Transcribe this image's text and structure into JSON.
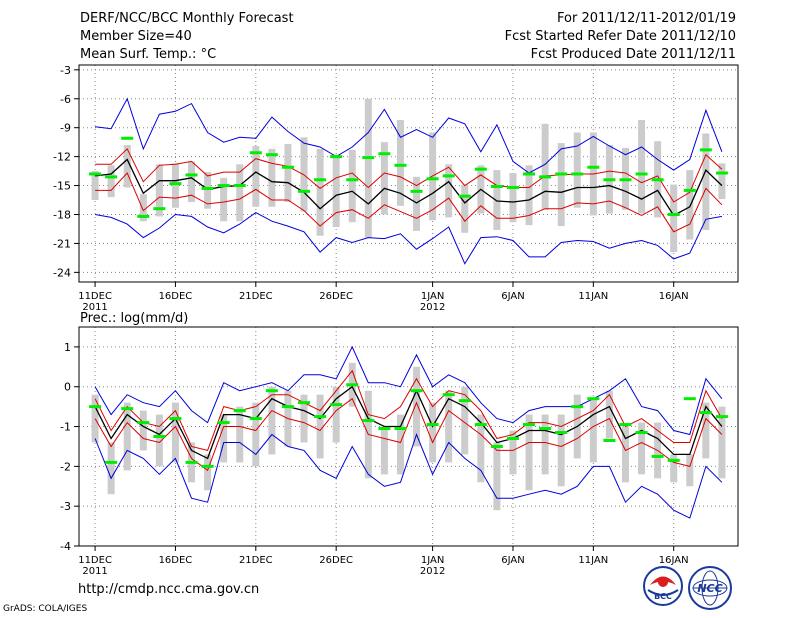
{
  "header": {
    "title": "DERF/NCC/BCC Monthly Forecast",
    "member_size": "Member Size=40",
    "period": "For 2011/12/11-2012/01/19",
    "fcst_started": "Fcst Started Refer Date 2011/12/10",
    "fcst_produced": "Fcst Produced Date 2011/12/11"
  },
  "footer": {
    "url": "http://cmdp.ncc.cma.gov.cn",
    "grads": "GrADS: COLA/IGES",
    "logo_bcc": "BCC",
    "logo_ncc": "NCC"
  },
  "colors": {
    "box": "#cccccc",
    "median": "#00ee00",
    "mean": "#000000",
    "std": "#dd0000",
    "extreme": "#0000dd",
    "grid": "#888888"
  },
  "chart_data": [
    {
      "type": "line",
      "title": "Mean Surf. Temp.: °C",
      "x": [
        1,
        2,
        3,
        4,
        5,
        6,
        7,
        8,
        9,
        10,
        11,
        12,
        13,
        14,
        15,
        16,
        17,
        18,
        19,
        20,
        21,
        22,
        23,
        24,
        25,
        26,
        27,
        28,
        29,
        30,
        31,
        32,
        33,
        34,
        35,
        36,
        37,
        38,
        39,
        40
      ],
      "xlim": [
        0,
        41
      ],
      "ylim": [
        -25,
        -2.5
      ],
      "yticks": [
        -3,
        -6,
        -9,
        -12,
        -15,
        -18,
        -21,
        -24
      ],
      "xticks": [
        {
          "x": 1,
          "label": "11DEC",
          "sub": "2011"
        },
        {
          "x": 6,
          "label": "16DEC",
          "sub": ""
        },
        {
          "x": 11,
          "label": "21DEC",
          "sub": ""
        },
        {
          "x": 16,
          "label": "26DEC",
          "sub": ""
        },
        {
          "x": 22,
          "label": "1JAN",
          "sub": "2012"
        },
        {
          "x": 27,
          "label": "6JAN",
          "sub": ""
        },
        {
          "x": 32,
          "label": "11JAN",
          "sub": ""
        },
        {
          "x": 37,
          "label": "16JAN",
          "sub": ""
        }
      ],
      "series": [
        {
          "name": "max",
          "values": [
            -8.9,
            -9.1,
            -6,
            -11.2,
            -7.6,
            -7.3,
            -6.5,
            -9.5,
            -10.5,
            -10,
            -10.1,
            -7.9,
            -9.4,
            -10.6,
            -11,
            -12,
            -11,
            -9.5,
            -7.1,
            -10,
            -9.2,
            -10,
            -8,
            -8.6,
            -11.5,
            -8.7,
            -12.5,
            -13.7,
            -12.8,
            -11.2,
            -10.9,
            -9.9,
            -10.9,
            -11.8,
            -11,
            -12.3,
            -13.4,
            -12.3,
            -7.2,
            -11.5
          ]
        },
        {
          "name": "std_upper",
          "values": [
            -12.8,
            -12.8,
            -11.2,
            -14.6,
            -12.9,
            -12.8,
            -12.5,
            -14,
            -13.6,
            -13.6,
            -12.2,
            -12.7,
            -13,
            -13.9,
            -15.3,
            -14.2,
            -13.7,
            -15.2,
            -13.7,
            -14.1,
            -15,
            -14,
            -13.1,
            -15,
            -13.9,
            -15,
            -15.2,
            -15.2,
            -14,
            -13.9,
            -13.8,
            -13.8,
            -13.5,
            -13.7,
            -14.7,
            -14,
            -16.7,
            -15.7,
            -11.8,
            -13.3
          ]
        },
        {
          "name": "mean",
          "values": [
            -14,
            -13.8,
            -12.3,
            -15.8,
            -14.5,
            -14.5,
            -14.2,
            -15.4,
            -15.1,
            -15,
            -13.6,
            -14.6,
            -14.7,
            -15.7,
            -17.4,
            -16,
            -15.6,
            -16.9,
            -15.3,
            -15.8,
            -16.8,
            -15.8,
            -14.6,
            -16.8,
            -15.4,
            -16.6,
            -16.7,
            -16.5,
            -15.6,
            -15.7,
            -15.2,
            -15.2,
            -15,
            -15.6,
            -16.4,
            -15.5,
            -18.1,
            -17.2,
            -13.4,
            -15
          ]
        },
        {
          "name": "std_lower",
          "values": [
            -15.5,
            -15.5,
            -13.7,
            -17.6,
            -16.2,
            -16.3,
            -16,
            -16.9,
            -16.7,
            -16.4,
            -15.4,
            -16.5,
            -16.5,
            -17.6,
            -19.2,
            -17.8,
            -17.5,
            -18.4,
            -17,
            -17.7,
            -18.4,
            -17.5,
            -16.3,
            -18.7,
            -17.1,
            -18.4,
            -18.4,
            -18.1,
            -17.4,
            -17.4,
            -16.8,
            -16.9,
            -16.6,
            -17.3,
            -18.1,
            -17.2,
            -19.8,
            -19,
            -15.3,
            -17
          ]
        },
        {
          "name": "min",
          "values": [
            -18,
            -18.3,
            -19,
            -20.4,
            -19.4,
            -18,
            -18.2,
            -19.3,
            -19.9,
            -19,
            -17.8,
            -18.7,
            -19.2,
            -19.8,
            -21.9,
            -20.4,
            -20.9,
            -20.4,
            -20.5,
            -20,
            -21.6,
            -20.5,
            -19.3,
            -23.1,
            -20.4,
            -20.3,
            -20.7,
            -22.4,
            -22.4,
            -20.9,
            -20.7,
            -20.8,
            -21.5,
            -21,
            -20.7,
            -21.2,
            -22.6,
            -22,
            -18.5,
            -18.2
          ]
        }
      ],
      "boxes": [
        [
          -16.5,
          -13.5
        ],
        [
          -16.2,
          -12.9
        ],
        [
          -15.2,
          -10.8
        ],
        [
          -18.7,
          -15.9
        ],
        [
          -18.2,
          -12.8
        ],
        [
          -17.3,
          -12.7
        ],
        [
          -16.7,
          -12.5
        ],
        [
          -17.4,
          -13.6
        ],
        [
          -18.7,
          -14.2
        ],
        [
          -18.7,
          -12.8
        ],
        [
          -17.2,
          -10.9
        ],
        [
          -17.2,
          -11.2
        ],
        [
          -16.7,
          -10.7
        ],
        [
          -17.7,
          -10
        ],
        [
          -20.2,
          -11.2
        ],
        [
          -19.3,
          -11.9
        ],
        [
          -18.8,
          -11.3
        ],
        [
          -20.4,
          -6
        ],
        [
          -18,
          -10.5
        ],
        [
          -17.1,
          -8.2
        ],
        [
          -19.7,
          -14.1
        ],
        [
          -18.6,
          -9.5
        ],
        [
          -18.3,
          -12.8
        ],
        [
          -19.9,
          -14.9
        ],
        [
          -17.9,
          -12.9
        ],
        [
          -19.6,
          -13.4
        ],
        [
          -18.8,
          -13.7
        ],
        [
          -19.1,
          -12.9
        ],
        [
          -17.5,
          -8.6
        ],
        [
          -19.2,
          -10.6
        ],
        [
          -17.3,
          -9.5
        ],
        [
          -18.1,
          -9.5
        ],
        [
          -17.9,
          -10.8
        ],
        [
          -17.5,
          -11.1
        ],
        [
          -17.9,
          -8.2
        ],
        [
          -18.3,
          -10.4
        ],
        [
          -21.9,
          -14.9
        ],
        [
          -20.6,
          -13.4
        ],
        [
          -19.6,
          -9.6
        ],
        [
          -16.4,
          -12.7
        ]
      ],
      "medians": [
        -13.8,
        -14.1,
        -10.1,
        -18.2,
        -17.4,
        -14.8,
        -13.9,
        -15.3,
        -15,
        -15,
        -11.6,
        -11.8,
        -13.1,
        -15.6,
        -14.4,
        -12,
        -14.4,
        -12.1,
        -11.7,
        -12.9,
        -15.6,
        -14.3,
        -14,
        -16.1,
        -13.3,
        -15.1,
        -15.2,
        -13.8,
        -14.1,
        -13.8,
        -13.8,
        -13.1,
        -14.4,
        -14.4,
        -13.8,
        -14.4,
        -18,
        -15.5,
        -11.3,
        -13.7
      ]
    },
    {
      "type": "line",
      "title": "Prec.: log(mm/d)",
      "x": [
        1,
        2,
        3,
        4,
        5,
        6,
        7,
        8,
        9,
        10,
        11,
        12,
        13,
        14,
        15,
        16,
        17,
        18,
        19,
        20,
        21,
        22,
        23,
        24,
        25,
        26,
        27,
        28,
        29,
        30,
        31,
        32,
        33,
        34,
        35,
        36,
        37,
        38,
        39,
        40
      ],
      "xlim": [
        0,
        41
      ],
      "ylim": [
        -4,
        1.5
      ],
      "yticks": [
        1,
        0,
        -1,
        -2,
        -3,
        -4
      ],
      "xticks": [
        {
          "x": 1,
          "label": "11DEC",
          "sub": "2011"
        },
        {
          "x": 6,
          "label": "16DEC",
          "sub": ""
        },
        {
          "x": 11,
          "label": "21DEC",
          "sub": ""
        },
        {
          "x": 16,
          "label": "26DEC",
          "sub": ""
        },
        {
          "x": 22,
          "label": "1JAN",
          "sub": "2012"
        },
        {
          "x": 27,
          "label": "6JAN",
          "sub": ""
        },
        {
          "x": 32,
          "label": "11JAN",
          "sub": ""
        },
        {
          "x": 37,
          "label": "16JAN",
          "sub": ""
        }
      ],
      "series": [
        {
          "name": "max",
          "values": [
            0,
            -0.7,
            -0.2,
            -0.4,
            -0.5,
            -0.1,
            -0.6,
            -0.9,
            0.1,
            -0.1,
            0,
            0.1,
            -0.1,
            0.3,
            0.3,
            0.2,
            1,
            0.1,
            0.1,
            0,
            0.8,
            0,
            0.3,
            0.1,
            -0.4,
            -0.8,
            -0.9,
            -0.6,
            -0.5,
            -0.5,
            -0.5,
            -0.3,
            -0.1,
            0.2,
            -0.5,
            -0.6,
            -1.1,
            -1.2,
            0.2,
            -0.3
          ]
        },
        {
          "name": "std_upper",
          "values": [
            -0.3,
            -1.1,
            -0.5,
            -0.9,
            -1,
            -0.6,
            -1.5,
            -1.6,
            -0.5,
            -0.6,
            -0.5,
            -0.2,
            -0.2,
            -0.4,
            -0.6,
            -0.1,
            0.4,
            -0.7,
            -0.8,
            -0.5,
            0.2,
            -0.5,
            -0.1,
            -0.2,
            -0.6,
            -1.3,
            -1.2,
            -0.9,
            -0.9,
            -1,
            -0.8,
            -0.6,
            -0.2,
            -1,
            -0.8,
            -1.1,
            -1.4,
            -1.4,
            -0.1,
            -0.8
          ]
        },
        {
          "name": "mean",
          "values": [
            -0.5,
            -1.3,
            -0.7,
            -1,
            -1.2,
            -0.8,
            -1.6,
            -1.8,
            -0.7,
            -0.7,
            -0.8,
            -0.3,
            -0.5,
            -0.6,
            -0.8,
            -0.3,
            0,
            -0.8,
            -1,
            -1,
            -0.1,
            -1,
            -0.3,
            -0.5,
            -0.9,
            -1.4,
            -1.3,
            -1.1,
            -1.1,
            -1.2,
            -1,
            -0.7,
            -0.5,
            -1.3,
            -1.1,
            -1.3,
            -1.7,
            -1.7,
            -0.5,
            -1
          ]
        },
        {
          "name": "std_lower",
          "values": [
            -0.8,
            -1.5,
            -0.9,
            -1.3,
            -1.4,
            -1,
            -1.8,
            -2.1,
            -1,
            -1,
            -1.1,
            -0.6,
            -0.8,
            -0.9,
            -1.1,
            -0.6,
            -0.3,
            -1.2,
            -1.3,
            -1.4,
            -0.4,
            -1.4,
            -0.6,
            -0.9,
            -1.2,
            -1.6,
            -1.6,
            -1.4,
            -1.4,
            -1.5,
            -1.3,
            -1,
            -0.8,
            -1.6,
            -1.4,
            -1.6,
            -1.9,
            -2,
            -0.8,
            -1.2
          ]
        },
        {
          "name": "min",
          "values": [
            -1.3,
            -2.3,
            -1.6,
            -1.8,
            -2.2,
            -1.8,
            -2.8,
            -2.9,
            -1.4,
            -1.4,
            -1.7,
            -1.2,
            -1.5,
            -1.6,
            -2.1,
            -2.3,
            -1.5,
            -2.2,
            -2.5,
            -2.4,
            -1.2,
            -2.2,
            -1.4,
            -1.8,
            -2.1,
            -2.8,
            -2.8,
            -2.7,
            -2.6,
            -2.7,
            -2.5,
            -2,
            -2,
            -2.9,
            -2.5,
            -2.7,
            -3.1,
            -3.3,
            -2,
            -2.4
          ]
        }
      ],
      "boxes": [
        [
          -1.4,
          -0.2
        ],
        [
          -2.7,
          -1.4
        ],
        [
          -2.1,
          -0.4
        ],
        [
          -1.6,
          -0.6
        ],
        [
          -2,
          -0.7
        ],
        [
          -1.9,
          -0.4
        ],
        [
          -2.4,
          -1.4
        ],
        [
          -2.6,
          -1.7
        ],
        [
          -1.9,
          -0.7
        ],
        [
          -1.9,
          -0.5
        ],
        [
          -2,
          -0.4
        ],
        [
          -1.7,
          0
        ],
        [
          -1.5,
          -0.1
        ],
        [
          -1.4,
          -0.2
        ],
        [
          -1.8,
          -0.2
        ],
        [
          -1.4,
          0
        ],
        [
          -0.5,
          0.6
        ],
        [
          -2.3,
          -0.1
        ],
        [
          -2.2,
          -1
        ],
        [
          -2.2,
          -0.7
        ],
        [
          -1.5,
          0.5
        ],
        [
          -1.9,
          -0.4
        ],
        [
          -1.9,
          -0.1
        ],
        [
          -1.7,
          0
        ],
        [
          -2.4,
          -0.7
        ],
        [
          -3.1,
          -1.4
        ],
        [
          -2.2,
          -1.1
        ],
        [
          -2.6,
          -0.7
        ],
        [
          -2.2,
          -0.7
        ],
        [
          -2.5,
          -0.7
        ],
        [
          -1.8,
          -0.2
        ],
        [
          -1.9,
          -0.3
        ],
        [
          -1.3,
          -0.1
        ],
        [
          -2.4,
          -1
        ],
        [
          -2.2,
          -0.9
        ],
        [
          -2.3,
          -0.9
        ],
        [
          -2.4,
          -1.7
        ],
        [
          -2.5,
          -1.7
        ],
        [
          -1.8,
          -0.4
        ],
        [
          -2.3,
          -0.5
        ]
      ],
      "medians": [
        -0.5,
        -1.9,
        -0.55,
        -0.9,
        -1.25,
        -0.8,
        -1.9,
        -2,
        -0.9,
        -0.6,
        -0.8,
        -0.1,
        -0.5,
        -0.4,
        -0.75,
        -0.45,
        0.05,
        -0.85,
        -1.05,
        -1.05,
        -0.1,
        -0.95,
        -0.2,
        -0.35,
        -0.95,
        -1.5,
        -1.3,
        -0.95,
        -1.05,
        -1.15,
        -0.5,
        -0.3,
        -1.35,
        -0.95,
        -1.15,
        -1.75,
        -1.85,
        -0.3,
        -0.65,
        -0.75
      ]
    }
  ]
}
